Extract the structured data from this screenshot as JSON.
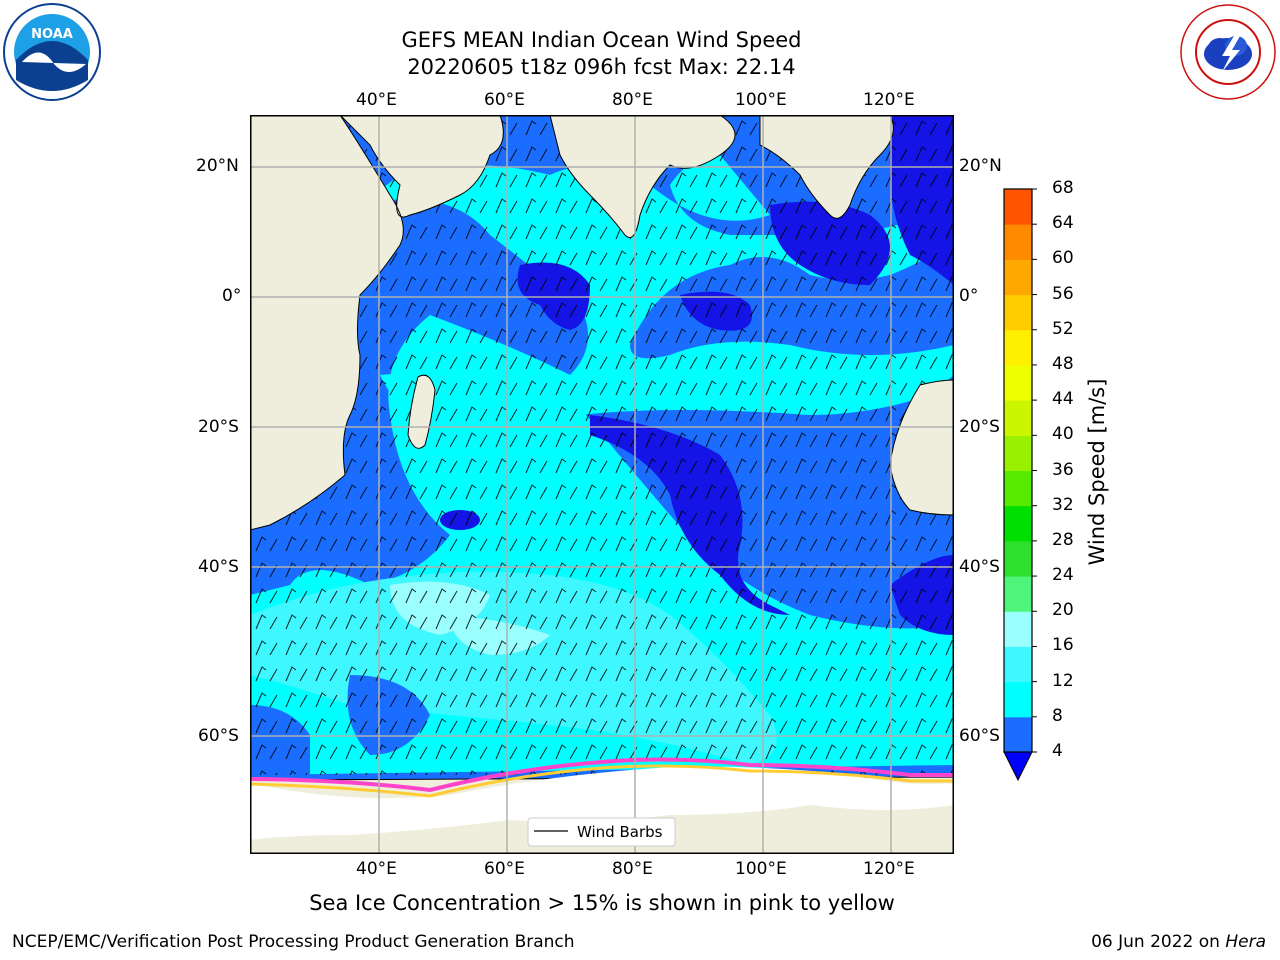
{
  "header": {
    "title_line1": "GEFS MEAN Indian Ocean Wind Speed",
    "title_line2": "20220605 t18z 096h fcst   Max: 22.14"
  },
  "logos": {
    "left": "NOAA",
    "right": "NATIONAL WEATHER SERVICE"
  },
  "map": {
    "lon_ticks": [
      "40°E",
      "60°E",
      "80°E",
      "100°E",
      "120°E"
    ],
    "lat_ticks": [
      "20°N",
      "0°",
      "20°S",
      "40°S",
      "60°S"
    ],
    "legend_label": "Wind Barbs",
    "colors": {
      "land": "#efeedc",
      "ice_free_shelf": "#ffffff",
      "frame": "#000000",
      "grid": "#b0b0b0"
    }
  },
  "colorbar": {
    "label": "Wind Speed [m/s]",
    "ticks": [
      "4",
      "8",
      "12",
      "16",
      "20",
      "24",
      "28",
      "32",
      "36",
      "40",
      "44",
      "48",
      "52",
      "56",
      "60",
      "64",
      "68"
    ],
    "colors": [
      "#1a6dff",
      "#00ffff",
      "#3ff7ff",
      "#99ffff",
      "#4ff57a",
      "#2ee02e",
      "#00e000",
      "#55ea00",
      "#99f000",
      "#ccf500",
      "#eeff00",
      "#fff000",
      "#ffcc00",
      "#ffa800",
      "#ff8a00",
      "#ff5500",
      "#ff2a00",
      "#ff0000"
    ],
    "extend_color": "#0000ff"
  },
  "caption": "Sea Ice Concentration > 15% is shown in pink to yellow",
  "footer": {
    "left": "NCEP/EMC/Verification Post Processing Product Generation Branch",
    "right_date": "06 Jun 2022 on ",
    "right_host": "Hera"
  }
}
